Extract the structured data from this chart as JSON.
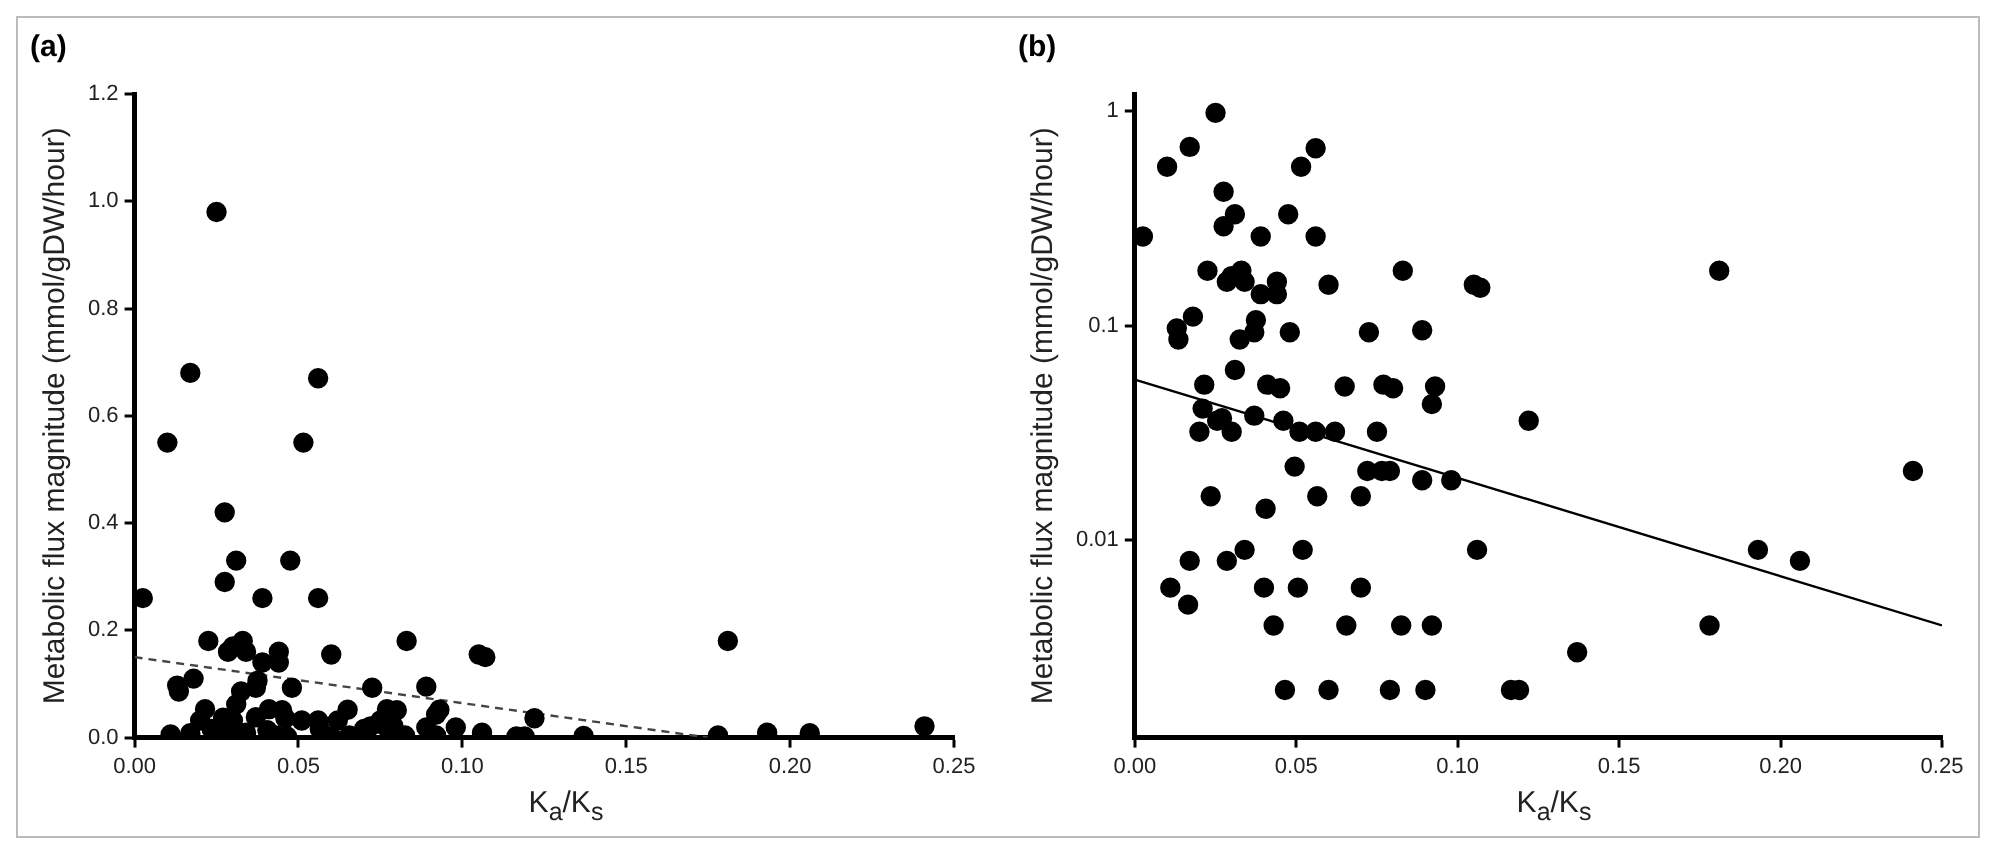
{
  "chart_data": [
    {
      "type": "scatter",
      "title": "(a)",
      "xlabel": "K$_{a}$/K$_{s}$",
      "ylabel": "Metabolic flux magnitude (mmol/gDW/hour)",
      "marker": "circle",
      "xlim": [
        0,
        0.25
      ],
      "ylim": [
        0,
        1.2
      ],
      "xticks": [
        {
          "value": 0,
          "label": "0.00"
        },
        {
          "value": 0.05,
          "label": "0.05"
        },
        {
          "value": 0.1,
          "label": "0.10"
        },
        {
          "value": 0.15,
          "label": "0.15"
        },
        {
          "value": 0.2,
          "label": "0.20"
        },
        {
          "value": 0.25,
          "label": "0.25"
        }
      ],
      "yticks": [
        {
          "value": 0,
          "label": "0.0"
        },
        {
          "value": 0.2,
          "label": "0.2"
        },
        {
          "value": 0.4,
          "label": "0.4"
        },
        {
          "value": 0.6,
          "label": "0.6"
        },
        {
          "value": 0.8,
          "label": "0.8"
        },
        {
          "value": 1.0,
          "label": "1.0"
        },
        {
          "value": 1.2,
          "label": "1.2"
        }
      ],
      "series": [
        {
          "color": "#000000",
          "x": [
            0.0025,
            0.01,
            0.017,
            0.025,
            0.0275,
            0.0275,
            0.031,
            0.039,
            0.0475,
            0.0515,
            0.056,
            0.056,
            0.0225,
            0.0285,
            0.03,
            0.033,
            0.034,
            0.039,
            0.044,
            0.044,
            0.06,
            0.083,
            0.105,
            0.107,
            0.181,
            0.013,
            0.0135,
            0.018,
            0.0325,
            0.0375,
            0.037,
            0.048,
            0.0725,
            0.089,
            0.0215,
            0.031,
            0.041,
            0.045,
            0.065,
            0.077,
            0.08,
            0.093,
            0.092,
            0.027,
            0.02,
            0.03,
            0.037,
            0.046,
            0.051,
            0.056,
            0.062,
            0.075,
            0.122,
            0.072,
            0.0765,
            0.079,
            0.089,
            0.098,
            0.241,
            0.0235,
            0.0565,
            0.07,
            0.0405,
            0.017,
            0.0285,
            0.034,
            0.106,
            0.193,
            0.206,
            0.011,
            0.043,
            0.0655,
            0.0825,
            0.092,
            0.178,
            0.137,
            0.0465,
            0.06,
            0.1165,
            0.119
          ],
          "values": [
            0.26,
            0.55,
            0.68,
            0.98,
            0.42,
            0.29,
            0.33,
            0.26,
            0.33,
            0.55,
            0.67,
            0.26,
            0.18,
            0.16,
            0.17,
            0.18,
            0.16,
            0.14,
            0.16,
            0.14,
            0.155,
            0.18,
            0.155,
            0.15,
            0.18,
            0.097,
            0.086,
            0.11,
            0.086,
            0.106,
            0.093,
            0.093,
            0.093,
            0.095,
            0.053,
            0.062,
            0.053,
            0.051,
            0.052,
            0.053,
            0.051,
            0.052,
            0.043,
            0.037,
            0.032,
            0.032,
            0.038,
            0.036,
            0.032,
            0.032,
            0.032,
            0.032,
            0.036,
            0.021,
            0.021,
            0.021,
            0.019,
            0.019,
            0.021,
            0.016,
            0.016,
            0.016,
            0.014,
            0.008,
            0.008,
            0.009,
            0.009,
            0.009,
            0.008,
            0.006,
            0.004,
            0.004,
            0.004,
            0.004,
            0.004,
            0.003,
            0.002,
            0.002,
            0.002,
            0.002
          ]
        },
        {
          "type": "line",
          "color": "#444444",
          "line_style": "dashed",
          "marker": "none",
          "x": [
            0,
            0.175
          ],
          "values": [
            0.15,
            0
          ]
        }
      ]
    },
    {
      "type": "scatter",
      "title": "(b)",
      "xlabel": "K$_{a}$/K$_{s}$",
      "ylabel": "Metabolic flux magnitude (mmol/gDW/hour)",
      "marker": "circle",
      "log": "y",
      "xlim": [
        0,
        0.25
      ],
      "ylim": [
        0.0012,
        1.2
      ],
      "xticks": [
        {
          "value": 0,
          "label": "0.00"
        },
        {
          "value": 0.05,
          "label": "0.05"
        },
        {
          "value": 0.1,
          "label": "0.10"
        },
        {
          "value": 0.15,
          "label": "0.15"
        },
        {
          "value": 0.2,
          "label": "0.20"
        },
        {
          "value": 0.25,
          "label": "0.25"
        }
      ],
      "yticks": [
        0.01,
        0.1,
        1
      ],
      "series": [
        {
          "color": "#000000",
          "x": [
            0.0025,
            0.01,
            0.017,
            0.025,
            0.0275,
            0.0275,
            0.031,
            0.039,
            0.0475,
            0.0515,
            0.056,
            0.056,
            0.0225,
            0.0285,
            0.03,
            0.033,
            0.034,
            0.039,
            0.044,
            0.044,
            0.06,
            0.083,
            0.105,
            0.107,
            0.181,
            0.013,
            0.0135,
            0.018,
            0.0325,
            0.0375,
            0.037,
            0.048,
            0.0725,
            0.089,
            0.0215,
            0.031,
            0.041,
            0.045,
            0.065,
            0.077,
            0.08,
            0.093,
            0.092,
            0.021,
            0.0255,
            0.027,
            0.02,
            0.03,
            0.037,
            0.046,
            0.051,
            0.056,
            0.062,
            0.075,
            0.122,
            0.0495,
            0.072,
            0.0765,
            0.079,
            0.089,
            0.098,
            0.241,
            0.0235,
            0.0565,
            0.07,
            0.0405,
            0.017,
            0.0285,
            0.034,
            0.052,
            0.106,
            0.193,
            0.206,
            0.011,
            0.04,
            0.0505,
            0.07,
            0.0165,
            0.043,
            0.0655,
            0.0825,
            0.092,
            0.178,
            0.137,
            0.0465,
            0.06,
            0.079,
            0.09,
            0.1165,
            0.119
          ],
          "values": [
            0.26,
            0.55,
            0.68,
            0.98,
            0.42,
            0.29,
            0.33,
            0.26,
            0.33,
            0.55,
            0.67,
            0.26,
            0.18,
            0.16,
            0.17,
            0.18,
            0.16,
            0.14,
            0.16,
            0.14,
            0.155,
            0.18,
            0.155,
            0.15,
            0.18,
            0.097,
            0.086,
            0.11,
            0.086,
            0.106,
            0.093,
            0.093,
            0.093,
            0.095,
            0.053,
            0.062,
            0.053,
            0.051,
            0.052,
            0.053,
            0.051,
            0.052,
            0.043,
            0.041,
            0.036,
            0.037,
            0.032,
            0.032,
            0.038,
            0.036,
            0.032,
            0.032,
            0.032,
            0.032,
            0.036,
            0.022,
            0.021,
            0.021,
            0.021,
            0.019,
            0.019,
            0.021,
            0.016,
            0.016,
            0.016,
            0.014,
            0.008,
            0.008,
            0.009,
            0.009,
            0.009,
            0.009,
            0.008,
            0.006,
            0.006,
            0.006,
            0.006,
            0.005,
            0.004,
            0.004,
            0.004,
            0.004,
            0.004,
            0.003,
            0.002,
            0.002,
            0.002,
            0.002,
            0.002,
            0.002
          ]
        },
        {
          "type": "line",
          "color": "#000000",
          "line_style": "solid",
          "marker": "none",
          "x": [
            0,
            0.25
          ],
          "values": [
            0.056,
            0.004
          ]
        }
      ]
    }
  ]
}
